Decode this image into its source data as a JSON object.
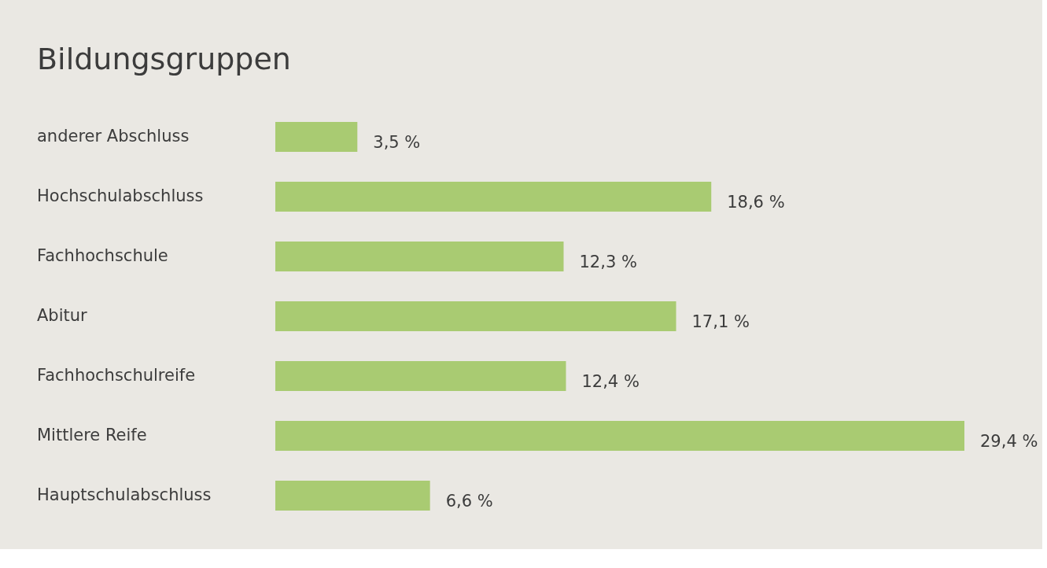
{
  "chart_data": {
    "type": "bar",
    "orientation": "horizontal",
    "title": "Bildungsgruppen",
    "categories": [
      "anderer Abschluss",
      "Hochschulabschluss",
      "Fachhochschule",
      "Abitur",
      "Fachhochschulreife",
      "Mittlere Reife",
      "Hauptschulabschluss"
    ],
    "values": [
      3.5,
      18.6,
      12.3,
      17.1,
      12.4,
      29.4,
      6.6
    ],
    "value_labels": [
      "3,5 %",
      "18,6 %",
      "12,3 %",
      "17,1 %",
      "12,4 %",
      "29,4 %",
      "6,6 %"
    ],
    "color": "#a9cb72"
  }
}
